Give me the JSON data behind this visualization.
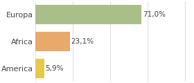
{
  "categories": [
    "America",
    "Africa",
    "Europa"
  ],
  "values": [
    5.9,
    23.1,
    71.0
  ],
  "labels": [
    "5,9%",
    "23,1%",
    "71,0%"
  ],
  "bar_colors": [
    "#e8c84a",
    "#e8a96a",
    "#a8bf8a"
  ],
  "background_color": "#ffffff",
  "plot_bg_color": "#ffffff",
  "xlim": [
    0,
    105
  ],
  "bar_height": 0.72,
  "label_fontsize": 7.5,
  "tick_fontsize": 8,
  "grid_color": "#dddddd"
}
